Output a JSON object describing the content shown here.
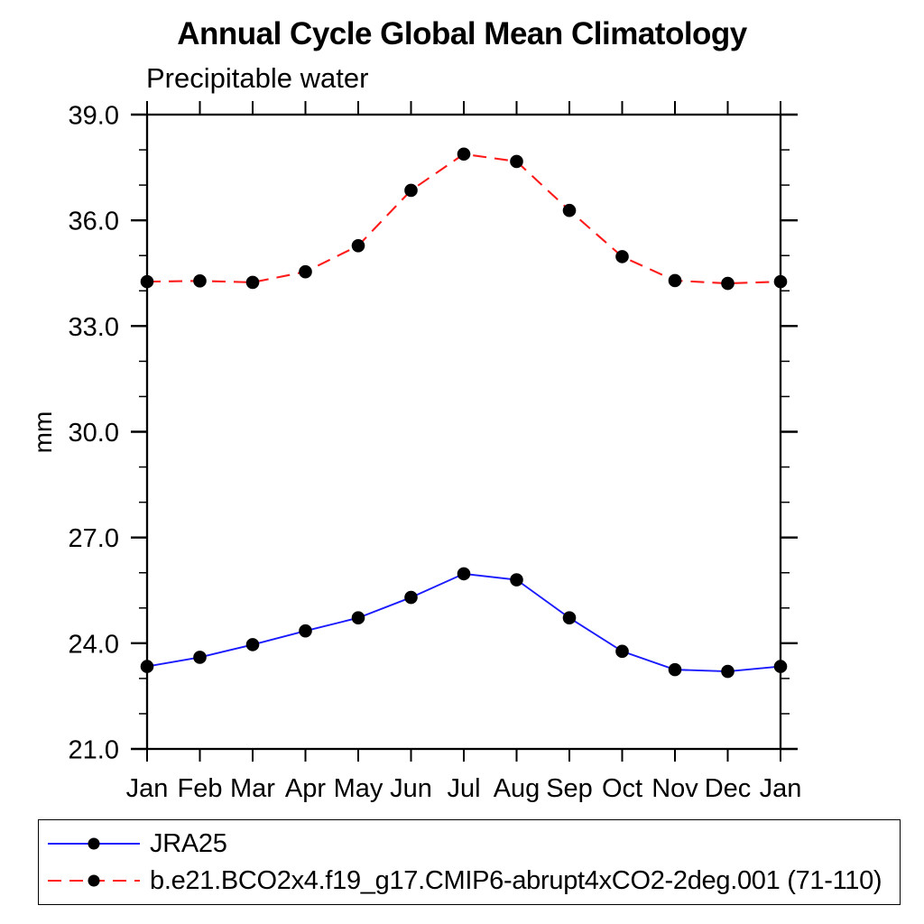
{
  "chart": {
    "title": "Annual Cycle Global Mean Climatology",
    "subtitle": "Precipitable water",
    "ylabel": "mm"
  },
  "chart_data": {
    "type": "line",
    "x": [
      "Jan",
      "Feb",
      "Mar",
      "Apr",
      "May",
      "Jun",
      "Jul",
      "Aug",
      "Sep",
      "Oct",
      "Nov",
      "Dec",
      "Jan"
    ],
    "xlabel": "",
    "ylabel": "mm",
    "title": "Annual Cycle Global Mean Climatology",
    "subtitle": "Precipitable water",
    "ylim": [
      21.0,
      39.0
    ],
    "ytick_labels": [
      "21.0",
      "24.0",
      "27.0",
      "30.0",
      "33.0",
      "36.0",
      "39.0"
    ],
    "yticks_major": [
      21.0,
      24.0,
      27.0,
      30.0,
      33.0,
      36.0,
      39.0
    ],
    "ytick_minor_interval": 1.0,
    "grid": false,
    "legend_position": "bottom-left-box",
    "marker_color": "#000000",
    "frame_color": "#000000",
    "series": [
      {
        "name": "JRA25",
        "color": "#1a1aff",
        "line_style": "solid",
        "marker": "filled-circle",
        "values": [
          23.34,
          23.6,
          23.96,
          24.35,
          24.72,
          25.3,
          25.97,
          25.8,
          24.72,
          23.77,
          23.25,
          23.2,
          23.34
        ]
      },
      {
        "name": "b.e21.BCO2x4.f19_g17.CMIP6-abrupt4xCO2-2deg.001 (71-110)",
        "color": "#ff1a1a",
        "line_style": "dashed",
        "marker": "filled-circle",
        "values": [
          34.26,
          34.28,
          34.24,
          34.54,
          35.28,
          36.85,
          37.88,
          37.67,
          36.28,
          34.97,
          34.29,
          34.21,
          34.26
        ]
      }
    ]
  }
}
